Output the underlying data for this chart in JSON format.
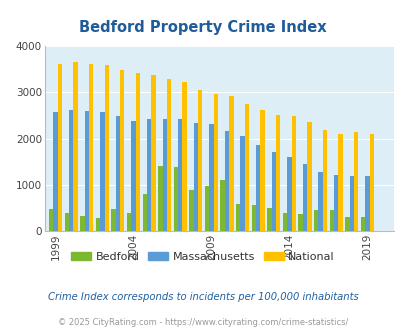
{
  "title": "Bedford Property Crime Index",
  "years": [
    1999,
    2000,
    2001,
    2002,
    2003,
    2004,
    2005,
    2006,
    2007,
    2008,
    2009,
    2010,
    2011,
    2012,
    2013,
    2014,
    2015,
    2016,
    2017,
    2018,
    2019,
    2020
  ],
  "bedford": [
    470,
    380,
    330,
    280,
    470,
    390,
    800,
    1400,
    1380,
    880,
    980,
    1100,
    590,
    570,
    490,
    390,
    360,
    450,
    450,
    310,
    300,
    0
  ],
  "massachusetts": [
    2570,
    2620,
    2600,
    2570,
    2490,
    2380,
    2420,
    2430,
    2430,
    2330,
    2320,
    2160,
    2060,
    1870,
    1700,
    1600,
    1460,
    1270,
    1210,
    1200,
    1190,
    0
  ],
  "national": [
    3620,
    3660,
    3620,
    3590,
    3490,
    3430,
    3370,
    3280,
    3230,
    3060,
    2960,
    2930,
    2750,
    2620,
    2500,
    2480,
    2370,
    2180,
    2100,
    2150,
    2100,
    0
  ],
  "color_bedford": "#7cb832",
  "color_massachusetts": "#5b9bd5",
  "color_national": "#ffc000",
  "bg_color": "#ddeef6",
  "ylim": [
    0,
    4000
  ],
  "xlabel_ticks": [
    1999,
    2004,
    2009,
    2014,
    2019
  ],
  "subtitle": "Crime Index corresponds to incidents per 100,000 inhabitants",
  "footer": "© 2025 CityRating.com - https://www.cityrating.com/crime-statistics/",
  "title_color": "#1f5c99",
  "subtitle_color": "#2060a0",
  "footer_color": "#999999"
}
